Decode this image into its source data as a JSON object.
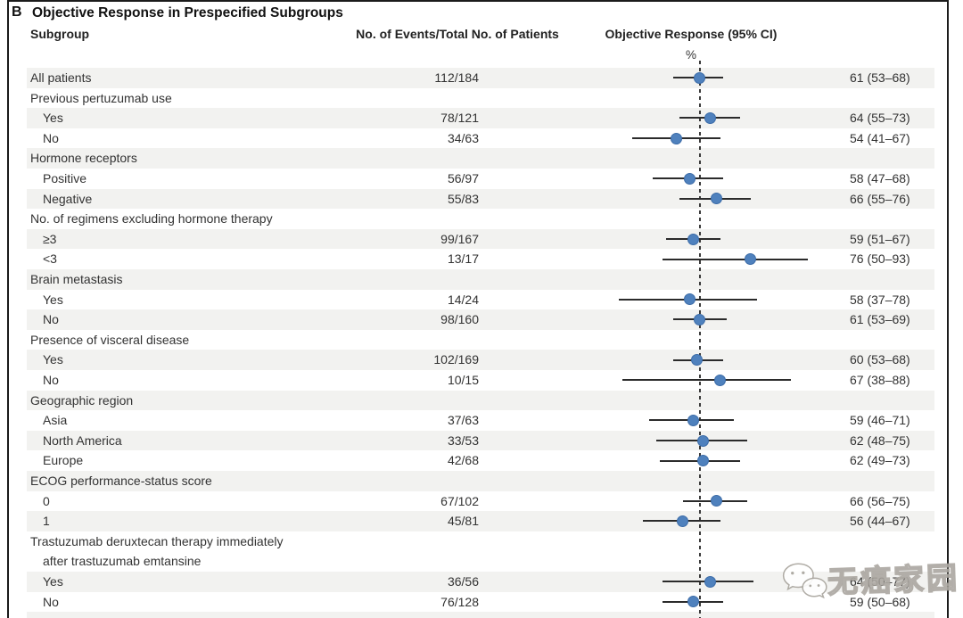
{
  "figure": {
    "panel_letter": "B",
    "title": "Objective Response in Prespecified Subgroups",
    "columns": {
      "subgroup": "Subgroup",
      "events": "No. of Events/Total No. of Patients",
      "response": "Objective Response (95% CI)",
      "unit": "%"
    },
    "watermark_text": "无癌家园"
  },
  "colors": {
    "marker": "#4f81bd",
    "marker_edge": "#3c6ca8",
    "whisker": "#2b2b2b",
    "row_shade": "#f2f2f0",
    "frame": "#1b1b1b"
  },
  "chart_data": {
    "type": "scatter",
    "subtype": "forest-plot",
    "title": "Objective Response in Prespecified Subgroups",
    "xlabel": "Objective Response (95% CI), %",
    "x_range": [
      28,
      102
    ],
    "reference_line": 61,
    "grid": false,
    "rows": [
      {
        "label": "All patients",
        "indent": 0,
        "events": "112/184",
        "est": 61,
        "lo": 53,
        "hi": 68,
        "text": "61 (53–68)",
        "shaded": true
      },
      {
        "label": "Previous pertuzumab use",
        "indent": 0,
        "shaded": false
      },
      {
        "label": "Yes",
        "indent": 1,
        "events": "78/121",
        "est": 64,
        "lo": 55,
        "hi": 73,
        "text": "64 (55–73)",
        "shaded": true
      },
      {
        "label": "No",
        "indent": 1,
        "events": "34/63",
        "est": 54,
        "lo": 41,
        "hi": 67,
        "text": "54 (41–67)",
        "shaded": false
      },
      {
        "label": "Hormone receptors",
        "indent": 0,
        "shaded": true
      },
      {
        "label": "Positive",
        "indent": 1,
        "events": "56/97",
        "est": 58,
        "lo": 47,
        "hi": 68,
        "text": "58 (47–68)",
        "shaded": false
      },
      {
        "label": "Negative",
        "indent": 1,
        "events": "55/83",
        "est": 66,
        "lo": 55,
        "hi": 76,
        "text": "66 (55–76)",
        "shaded": true
      },
      {
        "label": "No. of regimens excluding hormone therapy",
        "indent": 0,
        "shaded": false
      },
      {
        "label": "≥3",
        "indent": 1,
        "events": "99/167",
        "est": 59,
        "lo": 51,
        "hi": 67,
        "text": "59 (51–67)",
        "shaded": true
      },
      {
        "label": "<3",
        "indent": 1,
        "events": "13/17",
        "est": 76,
        "lo": 50,
        "hi": 93,
        "text": "76 (50–93)",
        "shaded": false
      },
      {
        "label": "Brain metastasis",
        "indent": 0,
        "shaded": true
      },
      {
        "label": "Yes",
        "indent": 1,
        "events": "14/24",
        "est": 58,
        "lo": 37,
        "hi": 78,
        "text": "58 (37–78)",
        "shaded": false
      },
      {
        "label": "No",
        "indent": 1,
        "events": "98/160",
        "est": 61,
        "lo": 53,
        "hi": 69,
        "text": "61 (53–69)",
        "shaded": true
      },
      {
        "label": "Presence of visceral disease",
        "indent": 0,
        "shaded": false
      },
      {
        "label": "Yes",
        "indent": 1,
        "events": "102/169",
        "est": 60,
        "lo": 53,
        "hi": 68,
        "text": "60 (53–68)",
        "shaded": true
      },
      {
        "label": "No",
        "indent": 1,
        "events": "10/15",
        "est": 67,
        "lo": 38,
        "hi": 88,
        "text": "67 (38–88)",
        "shaded": false
      },
      {
        "label": "Geographic region",
        "indent": 0,
        "shaded": true
      },
      {
        "label": "Asia",
        "indent": 1,
        "events": "37/63",
        "est": 59,
        "lo": 46,
        "hi": 71,
        "text": "59 (46–71)",
        "shaded": false
      },
      {
        "label": "North America",
        "indent": 1,
        "events": "33/53",
        "est": 62,
        "lo": 48,
        "hi": 75,
        "text": "62 (48–75)",
        "shaded": true
      },
      {
        "label": "Europe",
        "indent": 1,
        "events": "42/68",
        "est": 62,
        "lo": 49,
        "hi": 73,
        "text": "62 (49–73)",
        "shaded": false
      },
      {
        "label": "ECOG performance-status score",
        "indent": 0,
        "shaded": true
      },
      {
        "label": "0",
        "indent": 1,
        "events": "67/102",
        "est": 66,
        "lo": 56,
        "hi": 75,
        "text": "66 (56–75)",
        "shaded": false
      },
      {
        "label": "1",
        "indent": 1,
        "events": "45/81",
        "est": 56,
        "lo": 44,
        "hi": 67,
        "text": "56 (44–67)",
        "shaded": true
      },
      {
        "label": "Trastuzumab deruxtecan therapy immediately",
        "label2": "after trastuzumab emtansine",
        "indent": 0,
        "shaded": false
      },
      {
        "label": "Yes",
        "indent": 1,
        "events": "36/56",
        "est": 64,
        "lo": 50,
        "hi": 77,
        "text": "64 (50–77)",
        "shaded": true
      },
      {
        "label": "No",
        "indent": 1,
        "events": "76/128",
        "est": 59,
        "lo": 50,
        "hi": 68,
        "text": "59 (50–68)",
        "shaded": false
      },
      {
        "label": "",
        "indent": 0,
        "shaded": true
      }
    ]
  }
}
